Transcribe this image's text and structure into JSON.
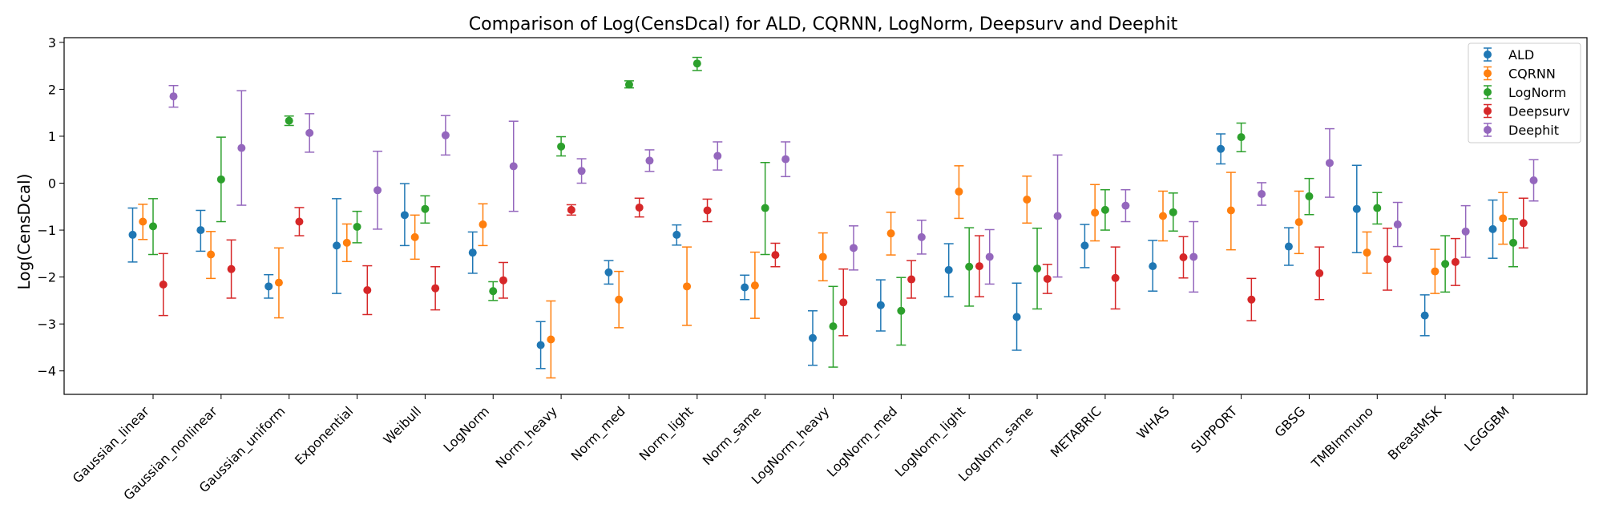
{
  "chart_data": {
    "type": "errorbar",
    "title": "Comparison of Log(CensDcal) for ALD, CQRNN, LogNorm, Deepsurv and Deephit",
    "xlabel": "",
    "ylabel": "Log(CensDcal)",
    "ylim": [
      -4.5,
      3.1
    ],
    "yticks": [
      -4,
      -3,
      -2,
      -1,
      0,
      1,
      2,
      3
    ],
    "ytick_labels": [
      "−4",
      "−3",
      "−2",
      "−1",
      "0",
      "1",
      "2",
      "3"
    ],
    "legend_position": "top-right",
    "categories": [
      "Gaussian_linear",
      "Gaussian_nonlinear",
      "Gaussian_uniform",
      "Exponential",
      "Weibull",
      "LogNorm",
      "Norm_heavy",
      "Norm_med",
      "Norm_light",
      "Norm_same",
      "LogNorm_heavy",
      "LogNorm_med",
      "LogNorm_light",
      "LogNorm_same",
      "METABRIC",
      "WHAS",
      "SUPPORT",
      "GBSG",
      "TMBImmuno",
      "BreastMSK",
      "LGGGBM"
    ],
    "series": [
      {
        "name": "ALD",
        "color": "#1f77b4",
        "values": [
          -1.1,
          -1.0,
          -2.2,
          -1.33,
          -0.68,
          -1.48,
          -3.45,
          -1.9,
          -1.1,
          -2.22,
          -3.3,
          -2.6,
          -1.85,
          -2.85,
          -1.33,
          -1.77,
          0.73,
          -1.35,
          -0.55,
          -2.82,
          -0.98
        ],
        "lower": [
          -1.68,
          -1.45,
          -2.45,
          -2.35,
          -1.33,
          -1.92,
          -3.95,
          -2.15,
          -1.32,
          -2.48,
          -3.88,
          -3.15,
          -2.42,
          -3.56,
          -1.8,
          -2.3,
          0.41,
          -1.75,
          -1.48,
          -3.25,
          -1.6
        ],
        "upper": [
          -0.53,
          -0.58,
          -1.95,
          -0.33,
          -0.01,
          -1.04,
          -2.95,
          -1.65,
          -0.89,
          -1.96,
          -2.72,
          -2.06,
          -1.29,
          -2.13,
          -0.88,
          -1.22,
          1.05,
          -0.95,
          0.38,
          -2.38,
          -0.36
        ]
      },
      {
        "name": "CQRNN",
        "color": "#ff7f0e",
        "values": [
          -0.82,
          -1.52,
          -2.12,
          -1.27,
          -1.15,
          -0.88,
          -3.33,
          -2.48,
          -2.2,
          -2.18,
          -1.57,
          -1.07,
          -0.18,
          -0.35,
          -0.63,
          -0.7,
          -0.58,
          -0.83,
          -1.48,
          -1.88,
          -0.75
        ],
        "lower": [
          -1.2,
          -2.03,
          -2.87,
          -1.67,
          -1.62,
          -1.33,
          -4.15,
          -3.08,
          -3.03,
          -2.88,
          -2.08,
          -1.53,
          -0.75,
          -0.85,
          -1.23,
          -1.23,
          -1.42,
          -1.5,
          -1.92,
          -2.35,
          -1.3
        ],
        "upper": [
          -0.45,
          -1.03,
          -1.38,
          -0.87,
          -0.68,
          -0.44,
          -2.51,
          -1.88,
          -1.36,
          -1.47,
          -1.06,
          -0.62,
          0.37,
          0.15,
          -0.03,
          -0.17,
          0.23,
          -0.17,
          -1.04,
          -1.41,
          -0.2
        ]
      },
      {
        "name": "LogNorm",
        "color": "#2ca02c",
        "values": [
          -0.92,
          0.08,
          1.33,
          -0.93,
          -0.55,
          -2.3,
          0.78,
          2.1,
          2.55,
          -0.53,
          -3.05,
          -2.72,
          -1.78,
          -1.82,
          -0.57,
          -0.62,
          0.98,
          -0.28,
          -0.53,
          -1.72,
          -1.27
        ],
        "lower": [
          -1.52,
          -0.82,
          1.23,
          -1.27,
          -0.85,
          -2.5,
          0.58,
          2.03,
          2.4,
          -1.52,
          -3.92,
          -3.45,
          -2.62,
          -2.68,
          -1.0,
          -1.02,
          0.67,
          -0.67,
          -0.87,
          -2.32,
          -1.78
        ],
        "upper": [
          -0.33,
          0.98,
          1.43,
          -0.6,
          -0.27,
          -2.1,
          0.99,
          2.18,
          2.68,
          0.44,
          -2.2,
          -2.01,
          -0.95,
          -0.96,
          -0.14,
          -0.21,
          1.28,
          0.1,
          -0.2,
          -1.12,
          -0.76
        ]
      },
      {
        "name": "Deepsurv",
        "color": "#d62728",
        "values": [
          -2.16,
          -1.83,
          -0.82,
          -2.28,
          -2.24,
          -2.07,
          -0.57,
          -0.52,
          -0.58,
          -1.53,
          -2.54,
          -2.05,
          -1.77,
          -2.04,
          -2.02,
          -1.58,
          -2.48,
          -1.92,
          -1.62,
          -1.68,
          -0.85
        ],
        "lower": [
          -2.82,
          -2.45,
          -1.12,
          -2.8,
          -2.7,
          -2.45,
          -0.68,
          -0.72,
          -0.82,
          -1.78,
          -3.25,
          -2.45,
          -2.42,
          -2.35,
          -2.68,
          -2.02,
          -2.93,
          -2.48,
          -2.28,
          -2.18,
          -1.38
        ],
        "upper": [
          -1.5,
          -1.21,
          -0.52,
          -1.76,
          -1.78,
          -1.69,
          -0.46,
          -0.32,
          -0.34,
          -1.28,
          -1.83,
          -1.65,
          -1.12,
          -1.73,
          -1.36,
          -1.14,
          -2.03,
          -1.36,
          -0.96,
          -1.18,
          -0.32
        ]
      },
      {
        "name": "Deephit",
        "color": "#9467bd",
        "values": [
          1.85,
          0.75,
          1.07,
          -0.15,
          1.02,
          0.36,
          0.26,
          0.48,
          0.58,
          0.51,
          -1.38,
          -1.15,
          -1.57,
          -0.7,
          -0.48,
          -1.57,
          -0.23,
          0.43,
          -0.88,
          -1.03,
          0.06
        ],
        "lower": [
          1.62,
          -0.47,
          0.66,
          -0.98,
          0.6,
          -0.6,
          0.0,
          0.25,
          0.28,
          0.14,
          -1.85,
          -1.51,
          -2.15,
          -2.0,
          -0.82,
          -2.32,
          -0.47,
          -0.3,
          -1.35,
          -1.58,
          -0.38
        ],
        "upper": [
          2.08,
          1.97,
          1.48,
          0.68,
          1.44,
          1.32,
          0.52,
          0.71,
          0.88,
          0.88,
          -0.91,
          -0.79,
          -0.99,
          0.6,
          -0.14,
          -0.82,
          0.01,
          1.16,
          -0.41,
          -0.48,
          0.5
        ]
      }
    ]
  }
}
